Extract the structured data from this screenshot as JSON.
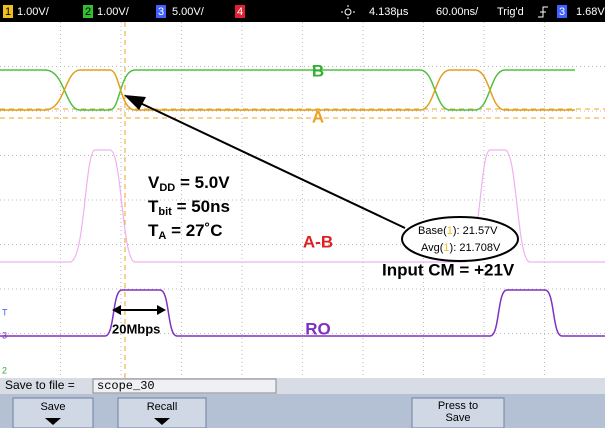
{
  "status_bar": {
    "ch1": "1",
    "ch1_scale": "1.00V/",
    "ch2": "2",
    "ch2_scale": "1.00V/",
    "ch3": "3",
    "ch3_scale": "5.00V/",
    "ch4": "4",
    "delay": "4.138µs",
    "timebase": "60.00ns/",
    "trigger": "Trig'd",
    "trigger_source": "3",
    "trigger_level": "1.68V"
  },
  "labels": {
    "b": "B",
    "a": "A",
    "a_minus_b": "A-B",
    "ro": "RO",
    "rate": "20Mbps",
    "input_cm": "Input CM = +21V"
  },
  "conditions": [
    {
      "main": "V",
      "sub": "DD",
      "rest": " = 5.0V"
    },
    {
      "main": "T",
      "sub": "bit",
      "rest": " = 50ns"
    },
    {
      "main": "T",
      "sub": "A",
      "rest": "  = 27˚C"
    }
  ],
  "measurements": {
    "base": {
      "pre": "Base(",
      "ch": "1",
      "post": "): 21.57V"
    },
    "avg": {
      "pre": "Avg(",
      "ch": "1",
      "post": "): 21.708V"
    }
  },
  "markers": {
    "t": "T",
    "ch3": "3",
    "ch2": "2"
  },
  "save_bar": {
    "label": "Save to file = ",
    "filename": "scope_30"
  },
  "softkeys": [
    "Save",
    "Recall",
    "Press to Save"
  ]
}
